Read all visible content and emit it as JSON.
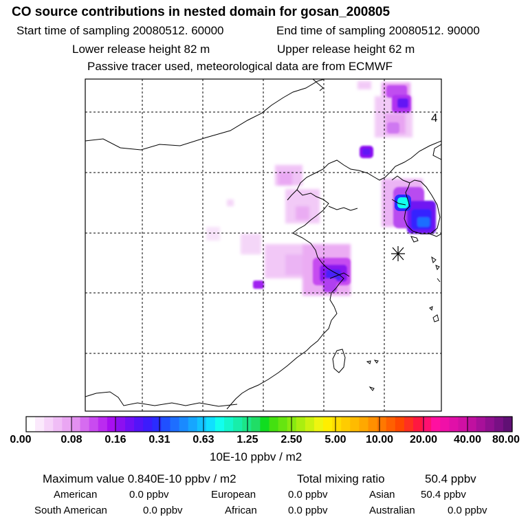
{
  "header": {
    "title": "CO  source contributions in nested domain for gosan_200805",
    "start_time": "Start time of sampling 20080512. 60000",
    "end_time": "End time of sampling 20080512. 90000",
    "lower_release": "Lower release height   82 m",
    "upper_release": "Upper release height   62 m",
    "tracer_note": "Passive tracer used, meteorological data are from ECMWF"
  },
  "map": {
    "corner_label": "4",
    "receptor_marker": "asterisk-station-icon"
  },
  "colorbar": {
    "labels": [
      "0.00",
      "0.08",
      "0.16",
      "0.31",
      "0.63",
      "1.25",
      "2.50",
      "5.00",
      "10.00",
      "20.00",
      "40.00",
      "80.00"
    ],
    "units": "10E-10 ppbv / m2",
    "colors": [
      "#ffffff",
      "#fbe9fc",
      "#f6d3f9",
      "#f0bdf6",
      "#eaa6f3",
      "#e390f0",
      "#d66cf0",
      "#c94bf0",
      "#bb2bf0",
      "#a80ff0",
      "#8c10f0",
      "#7010f5",
      "#5414f8",
      "#3c1cfc",
      "#2a2cff",
      "#2050ff",
      "#1e6eff",
      "#1a8aff",
      "#16a6ff",
      "#12c2ff",
      "#10e0ff",
      "#12ffee",
      "#14f7cc",
      "#18eeaa",
      "#1ce688",
      "#20dd66",
      "#10dd20",
      "#44e010",
      "#66e510",
      "#88ea10",
      "#aaee10",
      "#ccf210",
      "#eef510",
      "#ffee00",
      "#ffdd00",
      "#ffcc00",
      "#ffbb00",
      "#ffa800",
      "#ff9000",
      "#ff7800",
      "#ff6000",
      "#ff4800",
      "#ff3020",
      "#ff1840",
      "#ff1070",
      "#ff10a0",
      "#f010a8",
      "#e010a8",
      "#d010a4",
      "#c010a0",
      "#a8109a",
      "#901090",
      "#781084",
      "#601074"
    ]
  },
  "stats": {
    "max_value": "Maximum value  0.840E-10 ppbv / m2",
    "total_mixing": "Total mixing ratio",
    "total_mixing_value": "50.4 ppbv",
    "american_label": "American",
    "american_value": "0.0 ppbv",
    "european_label": "European",
    "european_value": "0.0 ppbv",
    "asian_label": "Asian",
    "asian_value": "50.4 ppbv",
    "south_american_label": "South American",
    "south_american_value": "0.0 ppbv",
    "african_label": "African",
    "african_value": "0.0 ppbv",
    "australian_label": "Australian",
    "australian_value": "0.0 ppbv"
  }
}
